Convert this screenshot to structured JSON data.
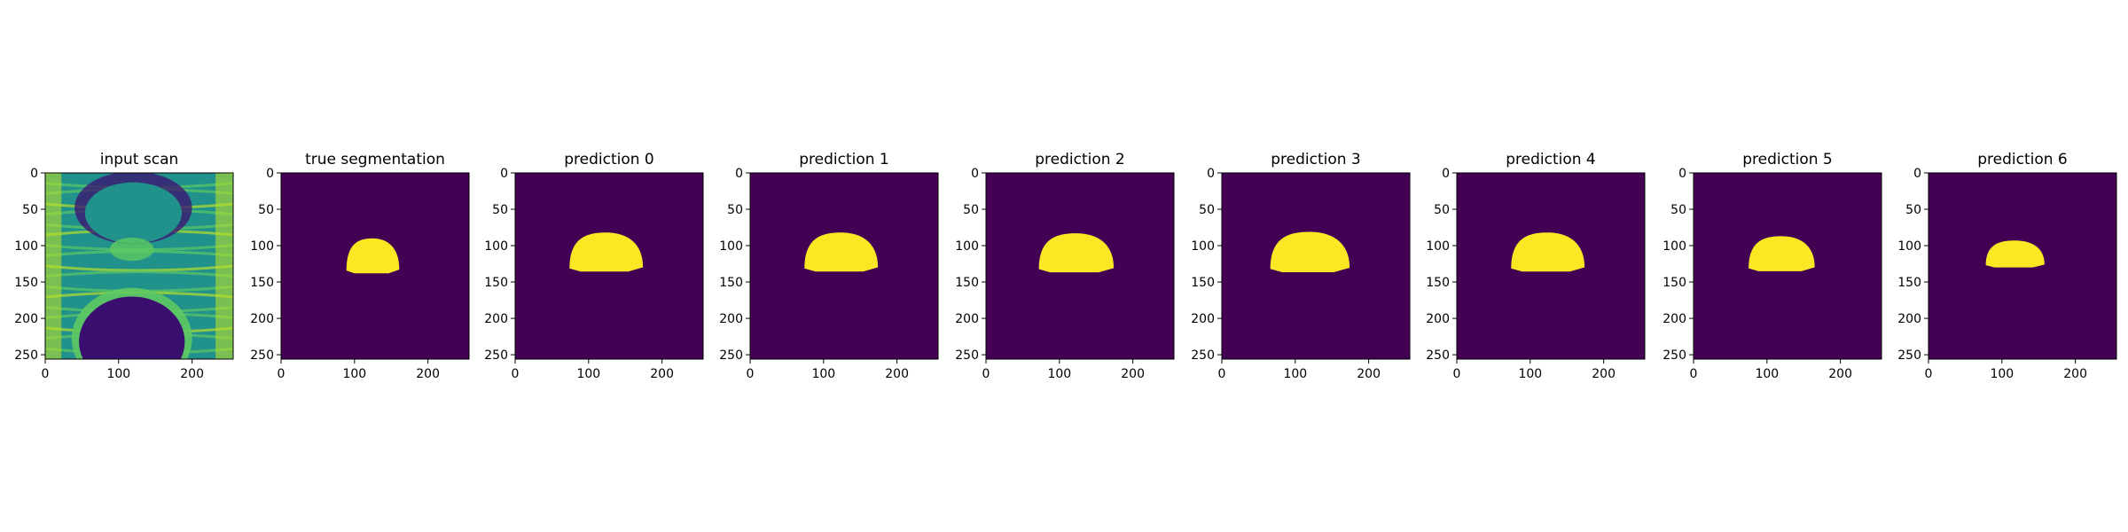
{
  "figure": {
    "panels": [
      {
        "title": "input scan",
        "kind": "scan"
      },
      {
        "title": "true segmentation",
        "kind": "mask",
        "blob": {
          "cx": 125,
          "cy": 116,
          "rx": 36,
          "ry": 26
        }
      },
      {
        "title": "prediction 0",
        "kind": "mask",
        "blob": {
          "cx": 124,
          "cy": 111,
          "rx": 50,
          "ry": 29
        }
      },
      {
        "title": "prediction 1",
        "kind": "mask",
        "blob": {
          "cx": 124,
          "cy": 111,
          "rx": 50,
          "ry": 29
        }
      },
      {
        "title": "prediction 2",
        "kind": "mask",
        "blob": {
          "cx": 123,
          "cy": 112,
          "rx": 51,
          "ry": 29
        }
      },
      {
        "title": "prediction 3",
        "kind": "mask",
        "blob": {
          "cx": 120,
          "cy": 111,
          "rx": 54,
          "ry": 30
        }
      },
      {
        "title": "prediction 4",
        "kind": "mask",
        "blob": {
          "cx": 124,
          "cy": 111,
          "rx": 50,
          "ry": 29
        }
      },
      {
        "title": "prediction 5",
        "kind": "mask",
        "blob": {
          "cx": 120,
          "cy": 113,
          "rx": 45,
          "ry": 26
        }
      },
      {
        "title": "prediction 6",
        "kind": "mask",
        "blob": {
          "cx": 118,
          "cy": 113,
          "rx": 40,
          "ry": 20
        }
      }
    ],
    "x_ticks": [
      "0",
      "100",
      "200"
    ],
    "y_ticks": [
      "0",
      "50",
      "100",
      "150",
      "200",
      "250"
    ],
    "x_tick_values": [
      0,
      100,
      200
    ],
    "y_tick_values": [
      0,
      50,
      100,
      150,
      200,
      250
    ],
    "image_size": 256,
    "colors": {
      "background": "#440154",
      "mask": "#fde725",
      "scan_dark": "#3b0f70",
      "scan_mid": "#21918c",
      "scan_light": "#5ec962",
      "scan_bright": "#b5de2b"
    }
  }
}
